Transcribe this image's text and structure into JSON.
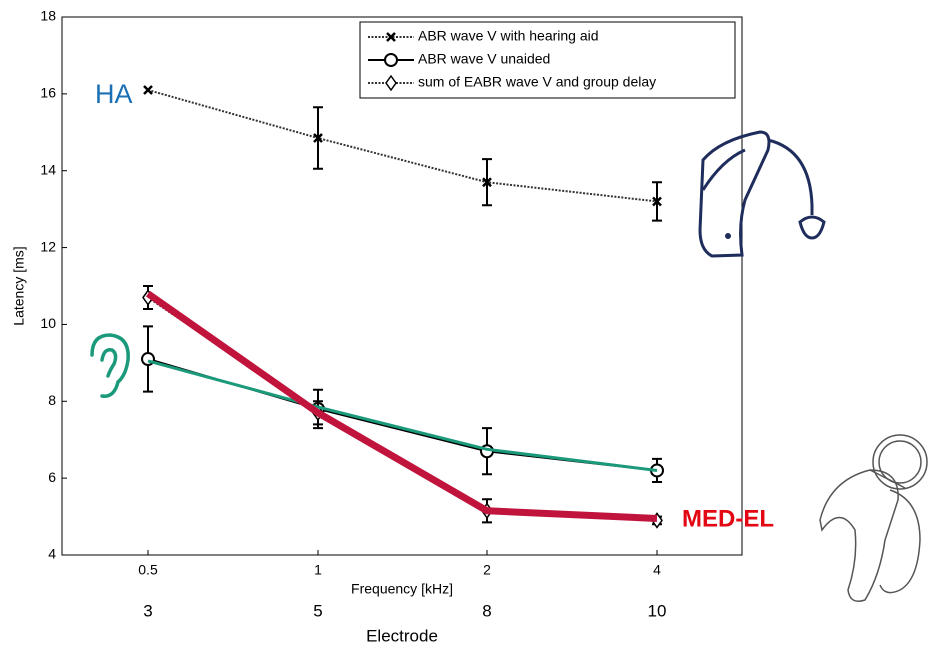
{
  "chart_data": {
    "type": "line",
    "y_label": "Latency [ms]",
    "x_label": "Frequency [kHz]",
    "categories": [
      "0.5",
      "1",
      "2",
      "4"
    ],
    "x2_label": "Electrode",
    "x2_categories": [
      "3",
      "5",
      "8",
      "10"
    ],
    "ylim": [
      4,
      18
    ],
    "yticks": [
      4,
      6,
      8,
      10,
      12,
      14,
      16,
      18
    ],
    "series": [
      {
        "name": "ABR wave V with hearing aid",
        "color": "#333333",
        "dash": "2,1.5",
        "marker": "x",
        "values": [
          16.1,
          14.85,
          13.7,
          13.2
        ],
        "errors": [
          null,
          0.8,
          0.6,
          0.5
        ]
      },
      {
        "name": "ABR wave V unaided",
        "color": "#000000",
        "dash": "none",
        "marker": "circle",
        "values": [
          9.1,
          7.8,
          6.7,
          6.2
        ],
        "errors": [
          0.85,
          0.5,
          0.6,
          0.3
        ]
      },
      {
        "name": "sum of EABR wave V and group delay",
        "color": "#333333",
        "dash": "2,1.5",
        "marker": "diamond",
        "values": [
          10.7,
          7.7,
          5.15,
          4.9
        ],
        "errors": [
          0.3,
          0.3,
          0.3,
          0.1
        ]
      }
    ],
    "overlays": [
      {
        "color": "#1a9a7a",
        "width": 3,
        "values": [
          9.05,
          7.85,
          6.75,
          6.2
        ]
      },
      {
        "color": "#c0143c",
        "width": 7,
        "values": [
          10.8,
          7.7,
          5.15,
          4.95
        ]
      }
    ],
    "annotations": [
      {
        "text": "HA",
        "color": "#1a6fb5"
      },
      {
        "text": "MED-EL",
        "color": "#e30613"
      }
    ]
  }
}
